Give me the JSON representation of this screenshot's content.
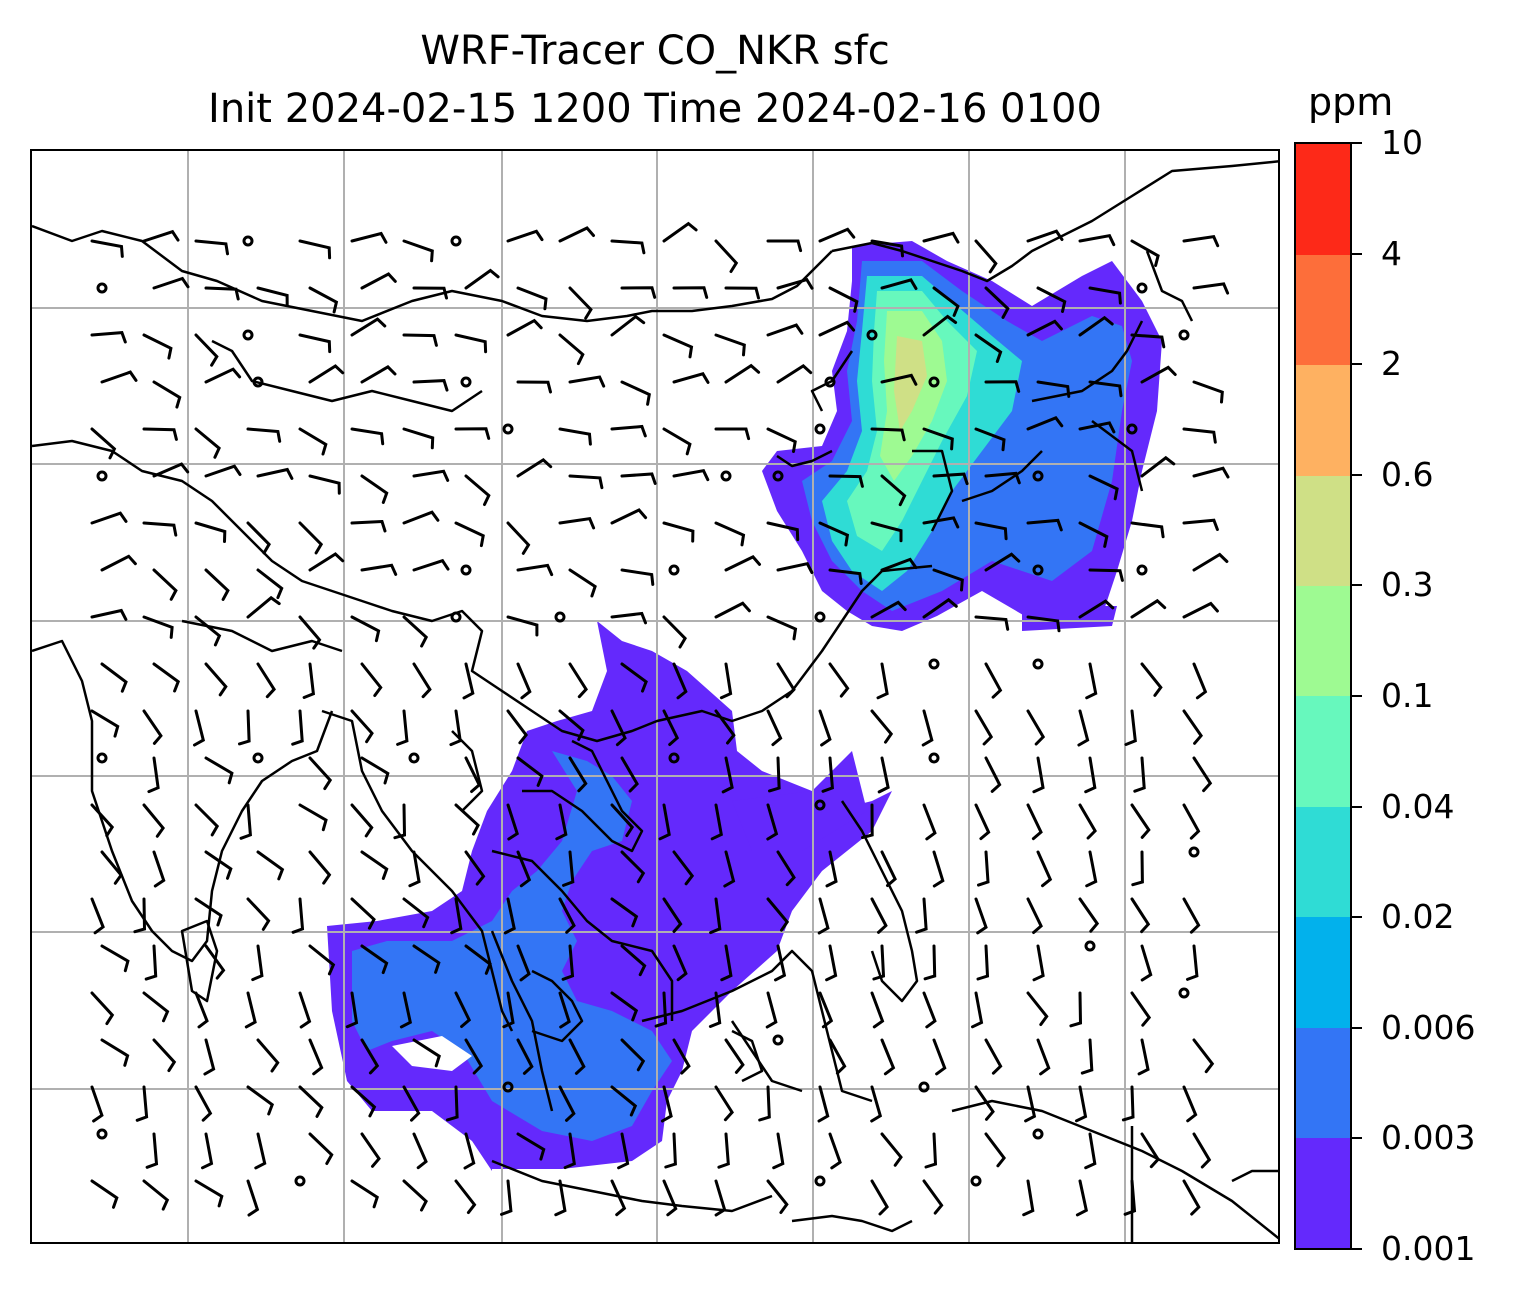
{
  "title": {
    "line1": "WRF-Tracer CO_NKR sfc",
    "line2": "Init 2024-02-15 1200 Time 2024-02-16 0100"
  },
  "colorbar": {
    "unit": "ppm",
    "levels": [
      "0.001",
      "0.003",
      "0.006",
      "0.02",
      "0.04",
      "0.1",
      "0.3",
      "0.6",
      "2",
      "4",
      "10"
    ],
    "colors": [
      "#6429fc",
      "#3375f5",
      "#02b1ec",
      "#2fdcd5",
      "#67f8bd",
      "#9efa92",
      "#cfe086",
      "#feb161",
      "#fd6e3a",
      "#fd2918"
    ]
  },
  "map": {
    "gridlines": true,
    "coastline_color": "#000000",
    "grid_color": "#b0b0b0"
  }
}
